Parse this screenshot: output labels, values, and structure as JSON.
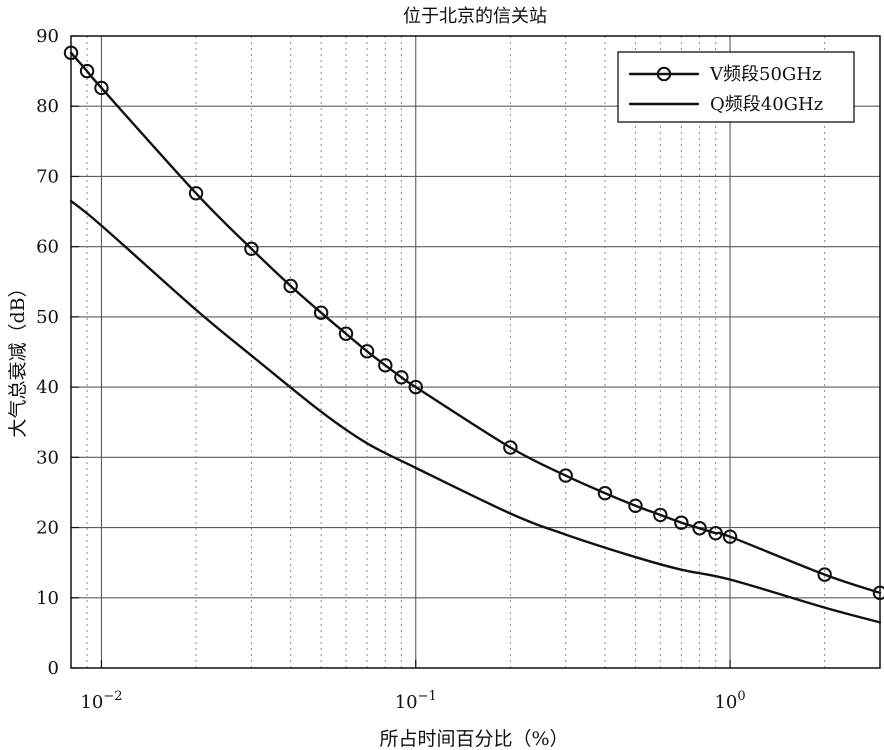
{
  "chart_data": {
    "type": "line",
    "title": "位于北京的信关站",
    "xlabel": "所占时间百分比（%）",
    "ylabel": "大气总衰减（dB）",
    "x_scale": "log",
    "xlim": [
      0.008,
      3
    ],
    "ylim": [
      0,
      90
    ],
    "grid": true,
    "legend": "top-right",
    "x_ticks": [
      {
        "value": 0.01,
        "base": "10",
        "exp": "−2"
      },
      {
        "value": 0.1,
        "base": "10",
        "exp": "−1"
      },
      {
        "value": 1,
        "base": "10",
        "exp": "0"
      }
    ],
    "y_ticks": [
      0,
      10,
      20,
      30,
      40,
      50,
      60,
      70,
      80,
      90
    ],
    "series": [
      {
        "name": "V频段50GHz",
        "marker": "circle",
        "color": "#111111",
        "x": [
          0.008,
          0.009,
          0.01,
          0.02,
          0.03,
          0.04,
          0.05,
          0.06,
          0.07,
          0.08,
          0.09,
          0.1,
          0.2,
          0.3,
          0.4,
          0.5,
          0.6,
          0.7,
          0.8,
          0.9,
          1,
          2,
          3
        ],
        "y": [
          87.6,
          85.0,
          82.6,
          67.6,
          59.7,
          54.4,
          50.6,
          47.6,
          45.1,
          43.1,
          41.4,
          40.0,
          31.4,
          27.4,
          24.9,
          23.1,
          21.8,
          20.7,
          19.9,
          19.2,
          18.7,
          13.3,
          10.7
        ]
      },
      {
        "name": "Q频段40GHz",
        "marker": "none",
        "color": "#111111",
        "x": [
          0.008,
          0.01,
          0.02,
          0.03,
          0.05,
          0.07,
          0.1,
          0.2,
          0.3,
          0.5,
          0.7,
          1,
          2,
          3
        ],
        "y": [
          66.5,
          63.0,
          51.0,
          44.5,
          36.5,
          32.0,
          28.5,
          22.0,
          19.0,
          15.8,
          14.0,
          12.6,
          8.6,
          6.5
        ]
      }
    ]
  }
}
